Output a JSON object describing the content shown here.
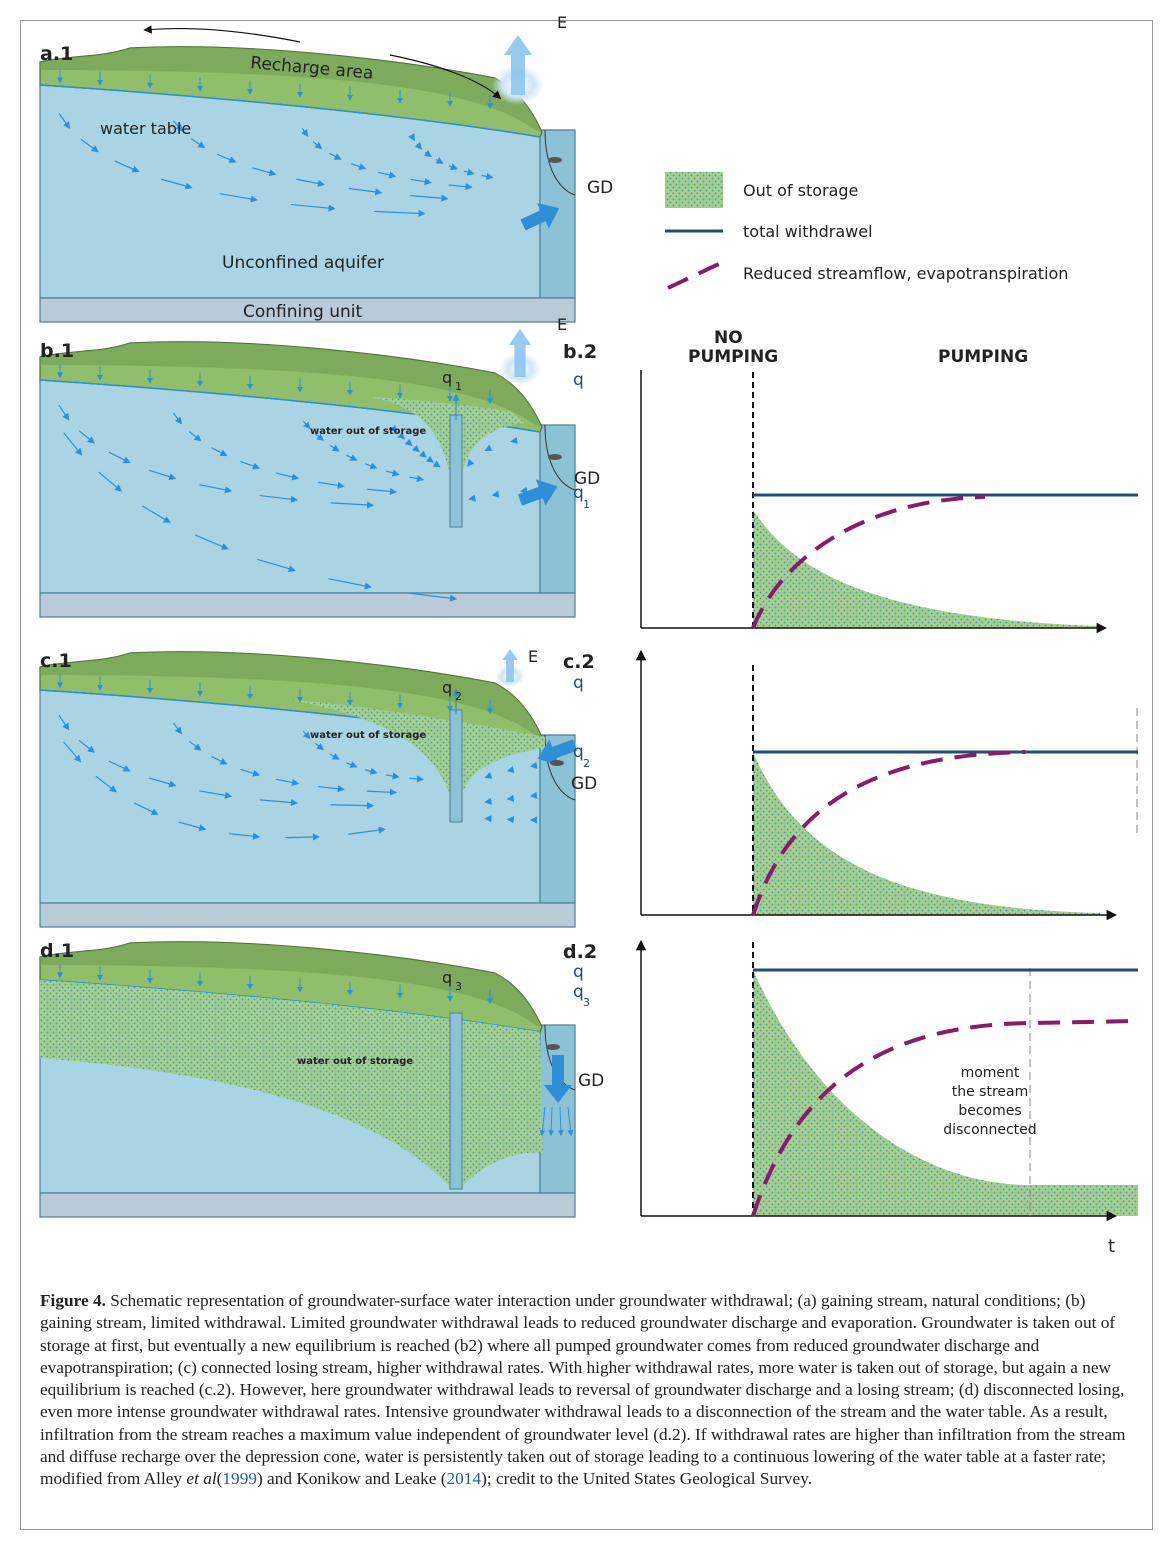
{
  "panels": {
    "a1": {
      "label": "a.1",
      "recharge": "Recharge area",
      "evaporation": "E",
      "water_table": "water table",
      "discharge": "GD",
      "aquifer": "Unconfined aquifer",
      "confining": "Confining unit"
    },
    "legend": {
      "out_of_storage": "Out of storage",
      "withdrawal": "total withdrawel",
      "reduced": "Reduced streamflow, evapotranspiration"
    },
    "b1": {
      "label": "b.1",
      "well": "q",
      "well_sub": "1",
      "evaporation": "E",
      "storage": "water out of storage",
      "discharge": "GD"
    },
    "b2": {
      "label": "b.2",
      "no_pumping": [
        "NO",
        "PUMPING"
      ],
      "pumping": "PUMPING",
      "y_axis": "q",
      "rate": "q",
      "rate_sub": "1"
    },
    "c1": {
      "label": "c.1",
      "well": "q",
      "well_sub": "2",
      "evaporation": "E",
      "storage": "water out of storage",
      "discharge": "GD"
    },
    "c2": {
      "label": "c.2",
      "y_axis": "q",
      "rate": "q",
      "rate_sub": "2"
    },
    "d1": {
      "label": "d.1",
      "well": "q",
      "well_sub": "3",
      "storage": "water out of storage",
      "discharge": "GD"
    },
    "d2": {
      "label": "d.2",
      "y_axis": "q",
      "rate": "q",
      "rate_sub": "3",
      "annotation": [
        "moment",
        "the stream",
        "becomes",
        "disconnected"
      ],
      "x_axis": "t"
    }
  },
  "caption": {
    "label": "Figure 4.",
    "text_1": "Schematic representation of groundwater-surface water interaction under groundwater withdrawal; (a) gaining stream, natural conditions; (b) gaining stream, limited withdrawal. Limited groundwater withdrawal leads to reduced groundwater discharge and evaporation. Groundwater is taken out of storage at first, but eventually a new equilibrium is reached (b2) where all pumped groundwater comes from reduced groundwater discharge and evapotranspiration; (c) connected losing stream, higher withdrawal rates. With higher withdrawal rates, more water is taken out of storage, but again a new equilibrium is reached (c.2). However, here groundwater withdrawal leads to reversal of groundwater discharge and a losing stream; (d) disconnected losing, even more intense groundwater withdrawal rates. Intensive groundwater withdrawal leads to a disconnection of the stream and the water table. As a result, infiltration from the stream reaches a maximum value independent of groundwater level (d.2). If withdrawal rates are higher than infiltration from the stream and diffuse recharge over the depression cone, water is persistently taken out of storage leading to a continuous lowering of the water table at a faster rate; modified from Alley",
    "italic": "et al",
    "text_2": "(",
    "ref_1": "1999",
    "text_3": ") and Konikow and Leake (",
    "ref_2": "2014",
    "text_4": "); credit to the United States Geological Survey."
  }
}
